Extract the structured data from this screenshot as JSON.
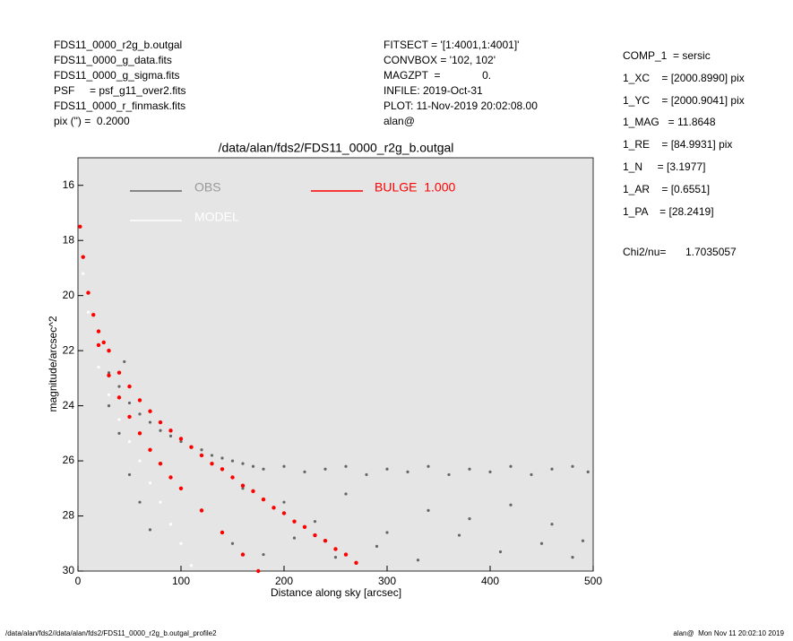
{
  "header": {
    "left": [
      "FDS11_0000_r2g_b.outgal",
      "FDS11_0000_g_data.fits",
      "FDS11_0000_g_sigma.fits",
      "PSF     = psf_g11_over2.fits",
      "FDS11_0000_r_finmask.fits",
      "pix (\") =  0.2000"
    ],
    "center": [
      "FITSECT = '[1:4001,1:4001]'",
      "CONVBOX = '102, 102'",
      "MAGZPT  =              0.",
      "INFILE: 2019-Oct-31",
      "PLOT: 11-Nov-2019 20:02:08.00",
      "alan@"
    ],
    "right": [
      "COMP_1  = sersic",
      "1_XC    = [2000.8990] pix",
      "1_YC    = [2000.9041] pix",
      "1_MAG   = 11.8648",
      "1_RE    = [84.9931] pix",
      "1_N     = [3.1977]",
      "1_AR    = [0.6551]",
      "1_PA    = [28.2419]"
    ],
    "chi_label": "Chi2/nu=",
    "chi_value": "1.7035057"
  },
  "footer": {
    "left": "/data/alan/fds2//data/alan/fds2/FDS11_0000_r2g_b.outgal_profile2",
    "right": "alan@  Mon Nov 11 20:02:10 2019"
  },
  "chart_data": {
    "type": "scatter",
    "title": "/data/alan/fds2/FDS11_0000_r2g_b.outgal",
    "x_label": "Distance along sky [arcsec]",
    "y_label": "magnitude/arcsec^2",
    "xlim": [
      0,
      500
    ],
    "xticks": [
      0,
      100,
      200,
      300,
      400,
      500
    ],
    "ylim": [
      30,
      15
    ],
    "yticks": [
      16,
      18,
      20,
      22,
      24,
      26,
      28,
      30
    ],
    "background": "#e5e5e5",
    "series": [
      {
        "name": "OBS",
        "color": "#666666",
        "x": [
          20,
          30,
          40,
          45,
          50,
          60,
          70,
          80,
          90,
          100,
          110,
          120,
          130,
          140,
          150,
          160,
          170,
          180,
          200,
          220,
          240,
          260,
          280,
          300,
          320,
          340,
          360,
          380,
          400,
          420,
          440,
          460,
          480,
          495,
          30,
          40,
          50,
          60,
          70,
          160,
          200,
          230,
          260,
          300,
          340,
          380,
          420,
          460,
          490,
          150,
          180,
          210,
          250,
          290,
          330,
          370,
          410,
          450,
          480
        ],
        "values": [
          21.8,
          22.8,
          23.3,
          22.4,
          23.9,
          24.3,
          24.6,
          24.9,
          25.1,
          25.3,
          25.5,
          25.6,
          25.8,
          25.9,
          26.0,
          26.1,
          26.2,
          26.3,
          26.2,
          26.4,
          26.3,
          26.2,
          26.5,
          26.3,
          26.4,
          26.2,
          26.5,
          26.3,
          26.4,
          26.2,
          26.5,
          26.3,
          26.2,
          26.4,
          24.0,
          25.0,
          26.5,
          27.5,
          28.5,
          27.0,
          27.5,
          28.2,
          27.2,
          28.6,
          27.8,
          28.1,
          27.6,
          28.3,
          28.9,
          29.0,
          29.4,
          28.8,
          29.5,
          29.1,
          29.6,
          28.7,
          29.3,
          29.0,
          29.5
        ]
      },
      {
        "name": "MODEL",
        "color": "#ffffff",
        "x": [
          5,
          10,
          20,
          30,
          40,
          50,
          60,
          70,
          80,
          90,
          100,
          110
        ],
        "values": [
          19.2,
          20.6,
          22.6,
          23.6,
          24.5,
          25.3,
          26.0,
          26.8,
          27.5,
          28.3,
          29.0,
          29.8
        ]
      },
      {
        "name": "BULGE  1.000",
        "color": "#ff0000",
        "x": [
          2,
          5,
          10,
          15,
          20,
          25,
          30,
          40,
          50,
          60,
          70,
          80,
          90,
          100,
          110,
          120,
          130,
          140,
          150,
          160,
          170,
          180,
          190,
          200,
          210,
          220,
          230,
          240,
          250,
          260,
          270,
          20,
          30,
          40,
          50,
          60,
          70,
          80,
          90,
          100,
          120,
          140,
          160,
          175
        ],
        "values": [
          17.5,
          18.6,
          19.9,
          20.7,
          21.3,
          21.7,
          22.0,
          22.8,
          23.3,
          23.8,
          24.2,
          24.6,
          24.9,
          25.2,
          25.5,
          25.8,
          26.1,
          26.3,
          26.6,
          26.9,
          27.1,
          27.4,
          27.7,
          27.9,
          28.2,
          28.4,
          28.7,
          28.9,
          29.2,
          29.4,
          29.7,
          21.8,
          22.9,
          23.7,
          24.4,
          25.0,
          25.6,
          26.1,
          26.6,
          27.0,
          27.8,
          28.6,
          29.4,
          30.0
        ]
      }
    ]
  }
}
